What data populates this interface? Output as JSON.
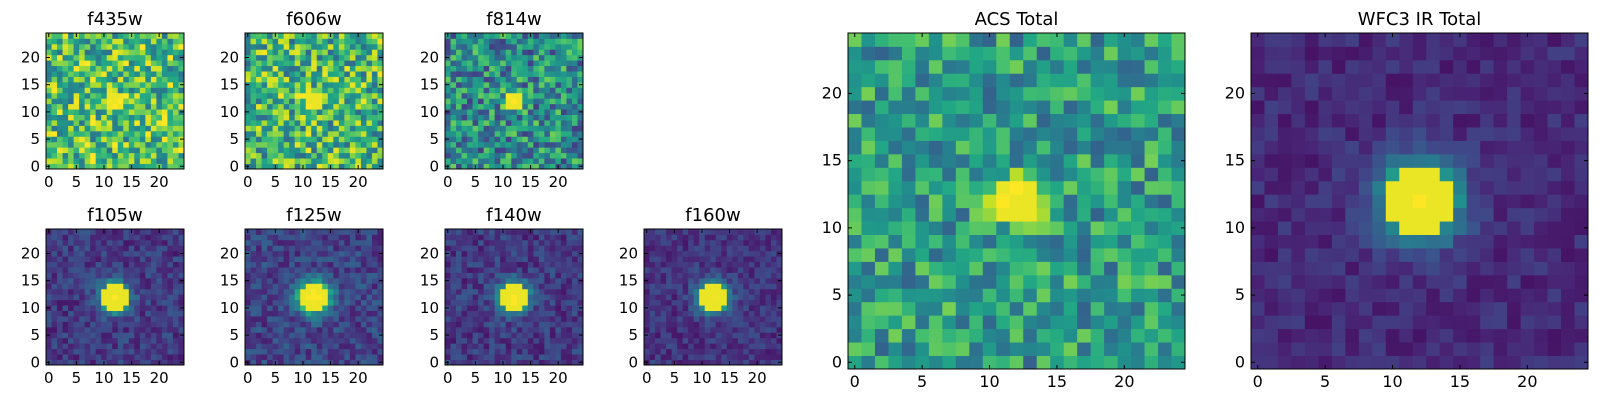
{
  "figure": {
    "colormap": "viridis",
    "colors": {
      "low": "#440154",
      "mid": "#21918c",
      "high": "#fde725"
    }
  },
  "chart_data": [
    {
      "type": "heatmap",
      "title": "f435w",
      "grid_size": 25,
      "xlim": [
        0,
        24
      ],
      "ylim": [
        0,
        24
      ],
      "xticks": [
        "0",
        "5",
        "10",
        "15",
        "20"
      ],
      "yticks": [
        "0",
        "5",
        "10",
        "15",
        "20"
      ],
      "source_center": [
        12,
        12
      ],
      "source_peak": 0.15,
      "source_sigma": 1.5,
      "noise_level": 0.32,
      "noise_seed": 11,
      "background": 0.7
    },
    {
      "type": "heatmap",
      "title": "f606w",
      "grid_size": 25,
      "xlim": [
        0,
        24
      ],
      "ylim": [
        0,
        24
      ],
      "xticks": [
        "0",
        "5",
        "10",
        "15",
        "20"
      ],
      "yticks": [
        "0",
        "5",
        "10",
        "15",
        "20"
      ],
      "source_center": [
        12,
        12
      ],
      "source_peak": 0.2,
      "source_sigma": 1.5,
      "noise_level": 0.32,
      "noise_seed": 23,
      "background": 0.66
    },
    {
      "type": "heatmap",
      "title": "f814w",
      "grid_size": 25,
      "xlim": [
        0,
        24
      ],
      "ylim": [
        0,
        24
      ],
      "xticks": [
        "0",
        "5",
        "10",
        "15",
        "20"
      ],
      "yticks": [
        "0",
        "5",
        "10",
        "15",
        "20"
      ],
      "source_center": [
        12,
        12
      ],
      "source_peak": 0.5,
      "source_sigma": 1.2,
      "noise_level": 0.3,
      "noise_seed": 37,
      "background": 0.48
    },
    {
      "type": "heatmap",
      "title": "f105w",
      "grid_size": 25,
      "xlim": [
        0,
        24
      ],
      "ylim": [
        0,
        24
      ],
      "xticks": [
        "0",
        "5",
        "10",
        "15",
        "20"
      ],
      "yticks": [
        "0",
        "5",
        "10",
        "15",
        "20"
      ],
      "source_center": [
        12,
        12
      ],
      "source_peak": 0.85,
      "source_sigma": 1.9,
      "noise_level": 0.11,
      "noise_seed": 41,
      "background": 0.17
    },
    {
      "type": "heatmap",
      "title": "f125w",
      "grid_size": 25,
      "xlim": [
        0,
        24
      ],
      "ylim": [
        0,
        24
      ],
      "xticks": [
        "0",
        "5",
        "10",
        "15",
        "20"
      ],
      "yticks": [
        "0",
        "5",
        "10",
        "15",
        "20"
      ],
      "source_center": [
        12,
        12
      ],
      "source_peak": 0.8,
      "source_sigma": 2.2,
      "noise_level": 0.12,
      "noise_seed": 53,
      "background": 0.2
    },
    {
      "type": "heatmap",
      "title": "f140w",
      "grid_size": 25,
      "xlim": [
        0,
        24
      ],
      "ylim": [
        0,
        24
      ],
      "xticks": [
        "0",
        "5",
        "10",
        "15",
        "20"
      ],
      "yticks": [
        "0",
        "5",
        "10",
        "15",
        "20"
      ],
      "source_center": [
        12,
        12
      ],
      "source_peak": 0.85,
      "source_sigma": 1.9,
      "noise_level": 0.11,
      "noise_seed": 67,
      "background": 0.17
    },
    {
      "type": "heatmap",
      "title": "f160w",
      "grid_size": 25,
      "xlim": [
        0,
        24
      ],
      "ylim": [
        0,
        24
      ],
      "xticks": [
        "0",
        "5",
        "10",
        "15",
        "20"
      ],
      "yticks": [
        "0",
        "5",
        "10",
        "15",
        "20"
      ],
      "source_center": [
        12,
        12
      ],
      "source_peak": 0.85,
      "source_sigma": 2.0,
      "noise_level": 0.09,
      "noise_seed": 79,
      "background": 0.15
    },
    {
      "type": "heatmap",
      "title": "ACS Total",
      "grid_size": 25,
      "xlim": [
        0,
        24
      ],
      "ylim": [
        0,
        24
      ],
      "xticks": [
        "0",
        "5",
        "10",
        "15",
        "20"
      ],
      "yticks": [
        "0",
        "5",
        "10",
        "15",
        "20"
      ],
      "source_center": [
        12,
        12
      ],
      "source_peak": 0.5,
      "source_sigma": 1.3,
      "noise_level": 0.24,
      "noise_seed": 97,
      "background": 0.55
    },
    {
      "type": "heatmap",
      "title": "WFC3 IR Total",
      "grid_size": 25,
      "xlim": [
        0,
        24
      ],
      "ylim": [
        0,
        24
      ],
      "xticks": [
        "0",
        "5",
        "10",
        "15",
        "20"
      ],
      "yticks": [
        "0",
        "5",
        "10",
        "15",
        "20"
      ],
      "source_center": [
        12,
        12
      ],
      "source_peak": 0.88,
      "source_sigma": 2.1,
      "noise_level": 0.07,
      "noise_seed": 113,
      "background": 0.12
    }
  ]
}
